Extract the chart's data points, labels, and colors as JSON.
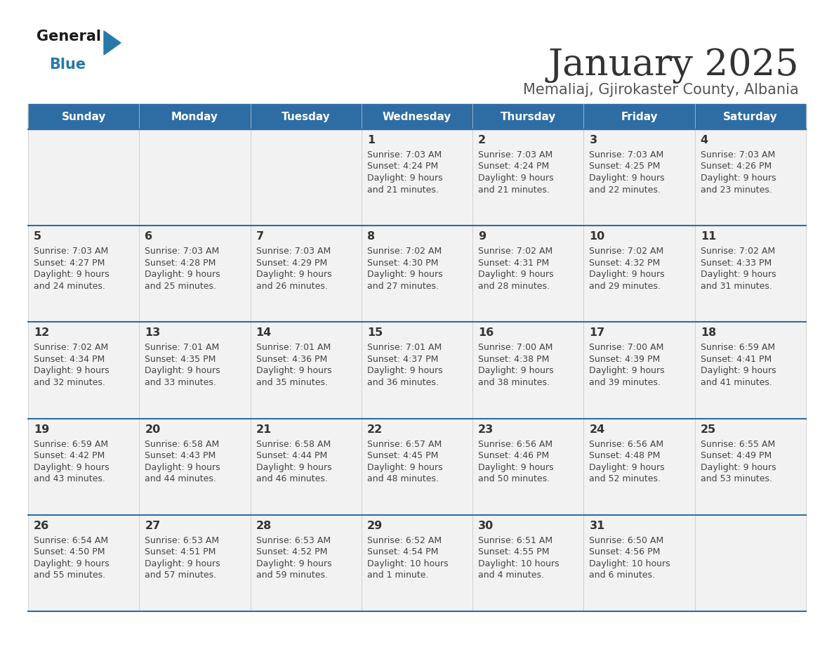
{
  "title": "January 2025",
  "subtitle": "Memaliaj, Gjirokaster County, Albania",
  "days_of_week": [
    "Sunday",
    "Monday",
    "Tuesday",
    "Wednesday",
    "Thursday",
    "Friday",
    "Saturday"
  ],
  "header_bg": "#2E6DA4",
  "header_text_color": "#FFFFFF",
  "cell_bg": "#F2F2F2",
  "row_line_color": "#2E6DA4",
  "day_num_color": "#333333",
  "cell_text_color": "#444444",
  "title_color": "#333333",
  "subtitle_color": "#555555",
  "logo_general_color": "#1a1a1a",
  "logo_blue_color": "#2779AA",
  "calendar": [
    [
      {
        "day": null,
        "sunrise": null,
        "sunset": null,
        "daylight": null
      },
      {
        "day": null,
        "sunrise": null,
        "sunset": null,
        "daylight": null
      },
      {
        "day": null,
        "sunrise": null,
        "sunset": null,
        "daylight": null
      },
      {
        "day": 1,
        "sunrise": "7:03 AM",
        "sunset": "4:24 PM",
        "daylight": "9 hours\nand 21 minutes."
      },
      {
        "day": 2,
        "sunrise": "7:03 AM",
        "sunset": "4:24 PM",
        "daylight": "9 hours\nand 21 minutes."
      },
      {
        "day": 3,
        "sunrise": "7:03 AM",
        "sunset": "4:25 PM",
        "daylight": "9 hours\nand 22 minutes."
      },
      {
        "day": 4,
        "sunrise": "7:03 AM",
        "sunset": "4:26 PM",
        "daylight": "9 hours\nand 23 minutes."
      }
    ],
    [
      {
        "day": 5,
        "sunrise": "7:03 AM",
        "sunset": "4:27 PM",
        "daylight": "9 hours\nand 24 minutes."
      },
      {
        "day": 6,
        "sunrise": "7:03 AM",
        "sunset": "4:28 PM",
        "daylight": "9 hours\nand 25 minutes."
      },
      {
        "day": 7,
        "sunrise": "7:03 AM",
        "sunset": "4:29 PM",
        "daylight": "9 hours\nand 26 minutes."
      },
      {
        "day": 8,
        "sunrise": "7:02 AM",
        "sunset": "4:30 PM",
        "daylight": "9 hours\nand 27 minutes."
      },
      {
        "day": 9,
        "sunrise": "7:02 AM",
        "sunset": "4:31 PM",
        "daylight": "9 hours\nand 28 minutes."
      },
      {
        "day": 10,
        "sunrise": "7:02 AM",
        "sunset": "4:32 PM",
        "daylight": "9 hours\nand 29 minutes."
      },
      {
        "day": 11,
        "sunrise": "7:02 AM",
        "sunset": "4:33 PM",
        "daylight": "9 hours\nand 31 minutes."
      }
    ],
    [
      {
        "day": 12,
        "sunrise": "7:02 AM",
        "sunset": "4:34 PM",
        "daylight": "9 hours\nand 32 minutes."
      },
      {
        "day": 13,
        "sunrise": "7:01 AM",
        "sunset": "4:35 PM",
        "daylight": "9 hours\nand 33 minutes."
      },
      {
        "day": 14,
        "sunrise": "7:01 AM",
        "sunset": "4:36 PM",
        "daylight": "9 hours\nand 35 minutes."
      },
      {
        "day": 15,
        "sunrise": "7:01 AM",
        "sunset": "4:37 PM",
        "daylight": "9 hours\nand 36 minutes."
      },
      {
        "day": 16,
        "sunrise": "7:00 AM",
        "sunset": "4:38 PM",
        "daylight": "9 hours\nand 38 minutes."
      },
      {
        "day": 17,
        "sunrise": "7:00 AM",
        "sunset": "4:39 PM",
        "daylight": "9 hours\nand 39 minutes."
      },
      {
        "day": 18,
        "sunrise": "6:59 AM",
        "sunset": "4:41 PM",
        "daylight": "9 hours\nand 41 minutes."
      }
    ],
    [
      {
        "day": 19,
        "sunrise": "6:59 AM",
        "sunset": "4:42 PM",
        "daylight": "9 hours\nand 43 minutes."
      },
      {
        "day": 20,
        "sunrise": "6:58 AM",
        "sunset": "4:43 PM",
        "daylight": "9 hours\nand 44 minutes."
      },
      {
        "day": 21,
        "sunrise": "6:58 AM",
        "sunset": "4:44 PM",
        "daylight": "9 hours\nand 46 minutes."
      },
      {
        "day": 22,
        "sunrise": "6:57 AM",
        "sunset": "4:45 PM",
        "daylight": "9 hours\nand 48 minutes."
      },
      {
        "day": 23,
        "sunrise": "6:56 AM",
        "sunset": "4:46 PM",
        "daylight": "9 hours\nand 50 minutes."
      },
      {
        "day": 24,
        "sunrise": "6:56 AM",
        "sunset": "4:48 PM",
        "daylight": "9 hours\nand 52 minutes."
      },
      {
        "day": 25,
        "sunrise": "6:55 AM",
        "sunset": "4:49 PM",
        "daylight": "9 hours\nand 53 minutes."
      }
    ],
    [
      {
        "day": 26,
        "sunrise": "6:54 AM",
        "sunset": "4:50 PM",
        "daylight": "9 hours\nand 55 minutes."
      },
      {
        "day": 27,
        "sunrise": "6:53 AM",
        "sunset": "4:51 PM",
        "daylight": "9 hours\nand 57 minutes."
      },
      {
        "day": 28,
        "sunrise": "6:53 AM",
        "sunset": "4:52 PM",
        "daylight": "9 hours\nand 59 minutes."
      },
      {
        "day": 29,
        "sunrise": "6:52 AM",
        "sunset": "4:54 PM",
        "daylight": "10 hours\nand 1 minute."
      },
      {
        "day": 30,
        "sunrise": "6:51 AM",
        "sunset": "4:55 PM",
        "daylight": "10 hours\nand 4 minutes."
      },
      {
        "day": 31,
        "sunrise": "6:50 AM",
        "sunset": "4:56 PM",
        "daylight": "10 hours\nand 6 minutes."
      },
      {
        "day": null,
        "sunrise": null,
        "sunset": null,
        "daylight": null
      }
    ]
  ]
}
